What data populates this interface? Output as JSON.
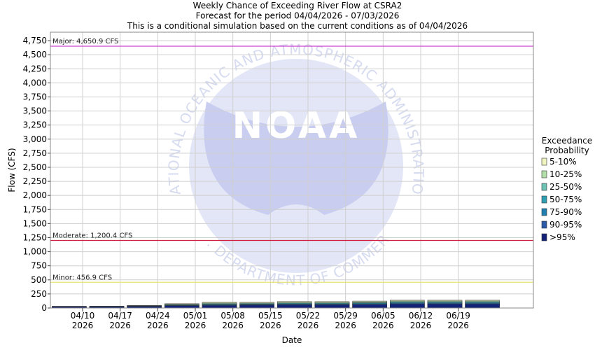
{
  "chart_data": {
    "type": "bar",
    "stacked": true,
    "title": [
      "Weekly Chance of Exceeding River Flow at CSRA2",
      "Forecast for the period 04/04/2026 - 07/03/2026",
      "This is a conditional simulation based on the current conditions as of 04/04/2026"
    ],
    "xlabel": "Date",
    "ylabel": "Flow (CFS)",
    "ylim": [
      0,
      4900
    ],
    "yticks": [
      0,
      250,
      500,
      750,
      1000,
      1250,
      1500,
      1750,
      2000,
      2250,
      2500,
      2750,
      3000,
      3250,
      3500,
      3750,
      4000,
      4250,
      4500,
      4750
    ],
    "ytick_labels": [
      "0",
      "250",
      "500",
      "750",
      "1,000",
      "1,250",
      "1,500",
      "1,750",
      "2,000",
      "2,250",
      "2,500",
      "2,750",
      "3,000",
      "3,250",
      "3,500",
      "3,750",
      "4,000",
      "4,250",
      "4,500",
      "4,750"
    ],
    "xticks": [
      {
        "date": "04/10",
        "year": "2026"
      },
      {
        "date": "04/17",
        "year": "2026"
      },
      {
        "date": "04/24",
        "year": "2026"
      },
      {
        "date": "05/01",
        "year": "2026"
      },
      {
        "date": "05/08",
        "year": "2026"
      },
      {
        "date": "05/15",
        "year": "2026"
      },
      {
        "date": "05/22",
        "year": "2026"
      },
      {
        "date": "05/29",
        "year": "2026"
      },
      {
        "date": "06/05",
        "year": "2026"
      },
      {
        "date": "06/12",
        "year": "2026"
      },
      {
        "date": "06/19",
        "year": "2026"
      }
    ],
    "weeks": [
      "04/04/2026",
      "04/11/2026",
      "04/18/2026",
      "04/25/2026",
      "05/02/2026",
      "05/09/2026",
      "05/16/2026",
      "05/23/2026",
      "05/30/2026",
      "06/06/2026",
      "06/13/2026",
      "06/20/2026"
    ],
    "legend_title": [
      "Exceedance",
      "Probability"
    ],
    "legend_placement": "right",
    "series": [
      {
        "name": ">95%",
        "color": "#14237a",
        "values": [
          20,
          22,
          28,
          40,
          45,
          50,
          55,
          55,
          60,
          70,
          70,
          70
        ]
      },
      {
        "name": "90-95%",
        "color": "#2a5aa8",
        "values": [
          22,
          24,
          31,
          45,
          52,
          57,
          63,
          63,
          70,
          80,
          80,
          80
        ]
      },
      {
        "name": "75-90%",
        "color": "#1e7fb0",
        "values": [
          24,
          26,
          34,
          50,
          60,
          64,
          72,
          72,
          80,
          92,
          92,
          92
        ]
      },
      {
        "name": "50-75%",
        "color": "#2ea0b4",
        "values": [
          26,
          28,
          37,
          55,
          70,
          72,
          82,
          82,
          90,
          104,
          104,
          104
        ]
      },
      {
        "name": "25-50%",
        "color": "#6cc3b5",
        "values": [
          28,
          30,
          40,
          62,
          80,
          82,
          92,
          92,
          100,
          116,
          116,
          116
        ]
      },
      {
        "name": "10-25%",
        "color": "#b2dfa8",
        "values": [
          30,
          33,
          44,
          70,
          92,
          92,
          104,
          104,
          112,
          128,
          128,
          128
        ]
      },
      {
        "name": "5-10%",
        "color": "#f0f5bf",
        "values": [
          32,
          35,
          48,
          78,
          104,
          102,
          116,
          114,
          124,
          140,
          140,
          140
        ]
      }
    ],
    "reference_lines": [
      {
        "label": "Major: 4,650.9 CFS",
        "value": 4650.9,
        "color": "#d040d0"
      },
      {
        "label": "Moderate: 1,200.4 CFS",
        "value": 1200.4,
        "color": "#d02040"
      },
      {
        "label": "Minor: 456.9 CFS",
        "value": 456.9,
        "color": "#e8e070"
      }
    ],
    "grid": true,
    "watermark": {
      "logo_text": "NOAA",
      "arc_text_top": "NATIONAL OCEANIC AND ATMOSPHERIC ADMINISTRATION",
      "arc_text_bottom": "U.S. DEPARTMENT OF COMMERCE"
    }
  }
}
